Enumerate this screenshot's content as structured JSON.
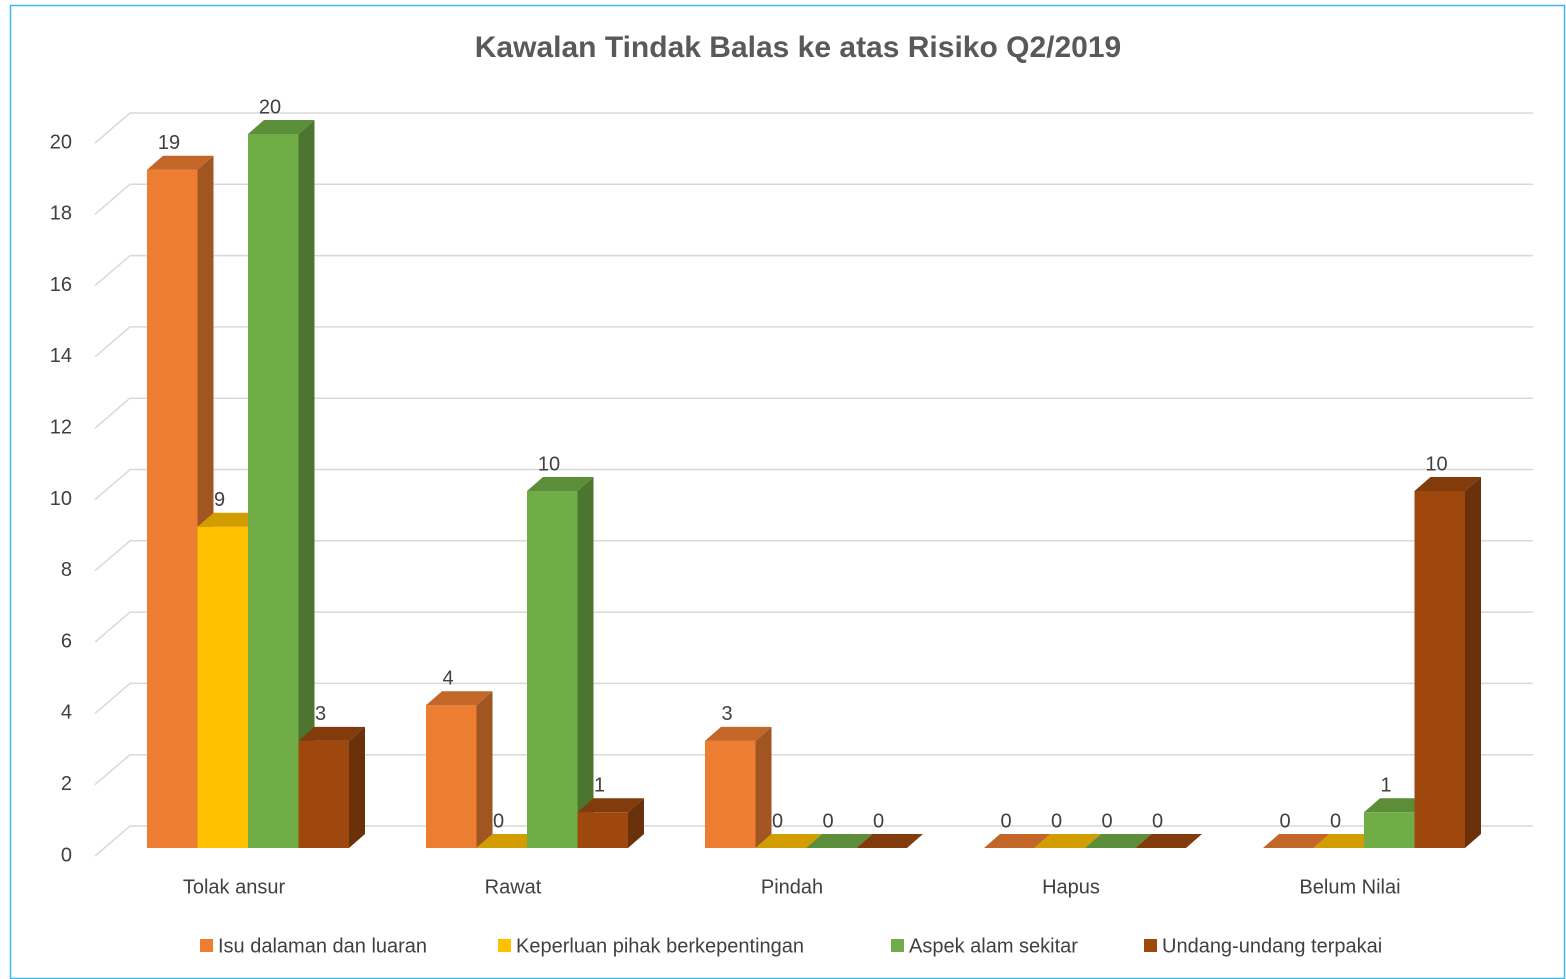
{
  "chart_data": {
    "type": "bar3d",
    "title": "Kawalan Tindak Balas ke atas Risiko Q2/2019",
    "categories": [
      "Tolak ansur",
      "Rawat",
      "Pindah",
      "Hapus",
      "Belum Nilai"
    ],
    "series": [
      {
        "name": "Isu dalaman dan luaran",
        "color": "#ED7D31",
        "values": [
          19,
          4,
          3,
          0,
          0
        ]
      },
      {
        "name": "Keperluan pihak berkepentingan",
        "color": "#FFC000",
        "values": [
          9,
          0,
          0,
          0,
          0
        ]
      },
      {
        "name": "Aspek alam sekitar",
        "color": "#70AD47",
        "values": [
          20,
          10,
          0,
          0,
          1
        ]
      },
      {
        "name": "Undang-undang terpakai",
        "color": "#9E480E",
        "values": [
          3,
          1,
          0,
          0,
          10
        ]
      }
    ],
    "ylim": [
      0,
      20
    ],
    "yticks": [
      0,
      2,
      4,
      6,
      8,
      10,
      12,
      14,
      16,
      18,
      20
    ],
    "grid": true,
    "legend": "bottom"
  }
}
